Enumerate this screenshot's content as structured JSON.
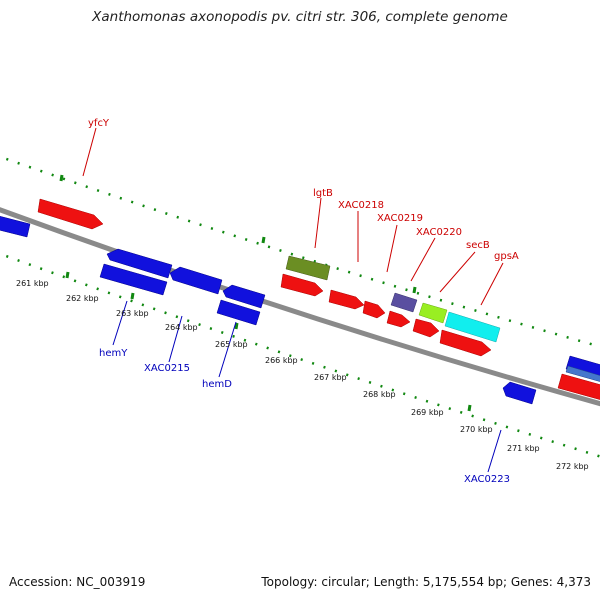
{
  "title": "Xanthomonas axonopodis pv. citri str. 306, complete genome",
  "footer": {
    "accession": "Accession: NC_003919",
    "stats": "Topology: circular; Length: 5,175,554 bp; Genes: 4,373"
  },
  "colors": {
    "forward_gene": "#ee1111",
    "reverse_gene": "#1111dd",
    "backbone": "#888888",
    "tick": "#118811",
    "forward_label": "#cc0000",
    "reverse_label": "#0000bb",
    "olive_feature": "#6b8e23",
    "purple_feature": "#5a4fa0",
    "lime_feature": "#99ee22",
    "cyan_feature": "#11eeee"
  },
  "scale_labels": [
    "261 kbp",
    "262 kbp",
    "263 kbp",
    "264 kbp",
    "265 kbp",
    "266 kbp",
    "267 kbp",
    "268 kbp",
    "269 kbp",
    "270 kbp",
    "271 kbp",
    "272 kbp"
  ],
  "forward_labels": [
    "yfcY",
    "lgtB",
    "XAC0218",
    "XAC0219",
    "XAC0220",
    "secB",
    "gpsA"
  ],
  "reverse_labels": [
    "hemY",
    "XAC0215",
    "hemD",
    "XAC0223"
  ]
}
